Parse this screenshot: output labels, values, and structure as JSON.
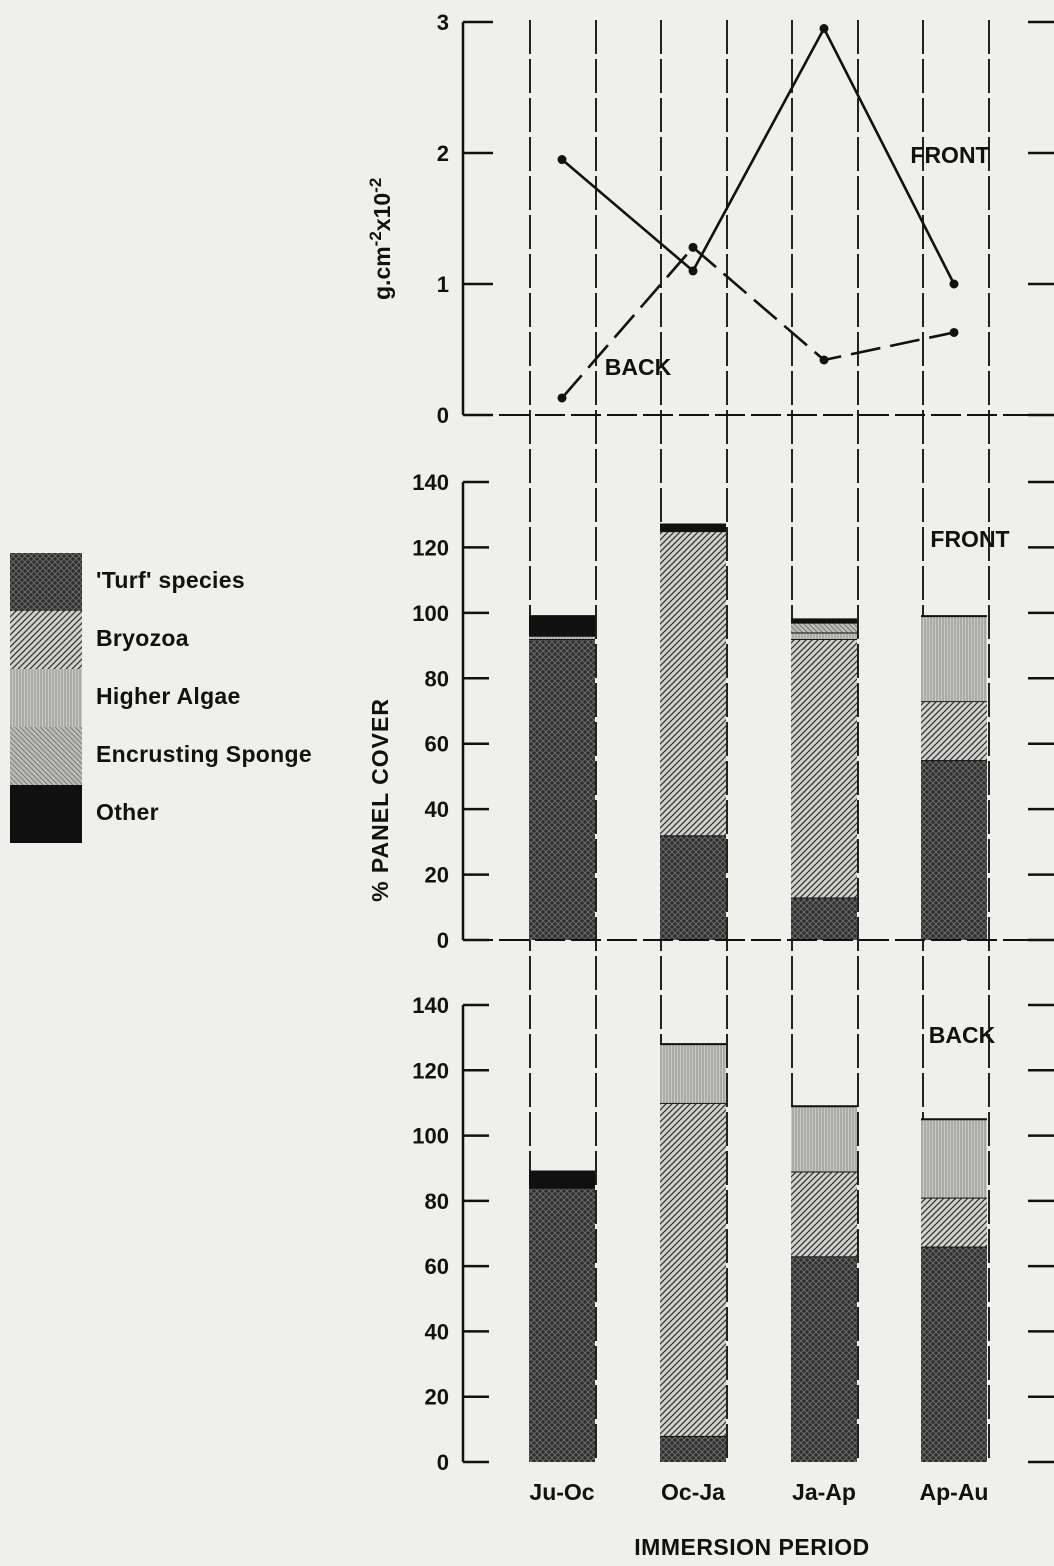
{
  "legend": {
    "items": [
      {
        "label": "'Turf' species",
        "pattern": "turf"
      },
      {
        "label": "Bryozoa",
        "pattern": "bryozoa"
      },
      {
        "label": "Higher Algae",
        "pattern": "algae"
      },
      {
        "label": "Encrusting Sponge",
        "pattern": "sponge"
      },
      {
        "label": "Other",
        "pattern": "other"
      }
    ]
  },
  "axes": {
    "top_ylabel_main": "g.cm",
    "top_ylabel_exp1": "-2",
    "top_ylabel_mid": "x10",
    "top_ylabel_exp2": "-2",
    "bar_ylabel": "% PANEL COVER",
    "xlabel": "IMMERSION PERIOD"
  },
  "chart_data": [
    {
      "type": "line",
      "categories": [
        "Ju-Oc",
        "Oc-Ja",
        "Ja-Ap",
        "Ap-Au"
      ],
      "ylim": [
        0,
        3
      ],
      "yticks": [
        0,
        1,
        2,
        3
      ],
      "series": [
        {
          "name": "FRONT",
          "style": "solid",
          "values": [
            1.95,
            1.1,
            2.95,
            1.0
          ]
        },
        {
          "name": "BACK",
          "style": "dashed",
          "values": [
            0.13,
            1.28,
            0.42,
            0.63
          ]
        }
      ]
    },
    {
      "type": "bar",
      "stacked": true,
      "panel_label": "FRONT",
      "categories": [
        "Ju-Oc",
        "Oc-Ja",
        "Ja-Ap",
        "Ap-Au"
      ],
      "ylim": [
        0,
        140
      ],
      "yticks": [
        0,
        20,
        40,
        60,
        80,
        100,
        120,
        140
      ],
      "series": [
        {
          "name": "'Turf' species",
          "values": [
            92,
            32,
            13,
            55
          ]
        },
        {
          "name": "Bryozoa",
          "values": [
            0,
            93,
            79,
            18
          ]
        },
        {
          "name": "Higher Algae",
          "values": [
            1,
            0,
            2,
            26
          ]
        },
        {
          "name": "Encrusting Sponge",
          "values": [
            0,
            0,
            3,
            0
          ]
        },
        {
          "name": "Other",
          "values": [
            6,
            2,
            1,
            0
          ]
        }
      ]
    },
    {
      "type": "bar",
      "stacked": true,
      "panel_label": "BACK",
      "categories": [
        "Ju-Oc",
        "Oc-Ja",
        "Ja-Ap",
        "Ap-Au"
      ],
      "ylim": [
        0,
        140
      ],
      "yticks": [
        0,
        20,
        40,
        60,
        80,
        100,
        120,
        140
      ],
      "series": [
        {
          "name": "'Turf' species",
          "values": [
            84,
            8,
            63,
            66
          ]
        },
        {
          "name": "Bryozoa",
          "values": [
            0,
            102,
            26,
            15
          ]
        },
        {
          "name": "Higher Algae",
          "values": [
            0,
            18,
            20,
            24
          ]
        },
        {
          "name": "Encrusting Sponge",
          "values": [
            0,
            0,
            0,
            0
          ]
        },
        {
          "name": "Other",
          "values": [
            5,
            0,
            0,
            0
          ]
        }
      ]
    }
  ]
}
